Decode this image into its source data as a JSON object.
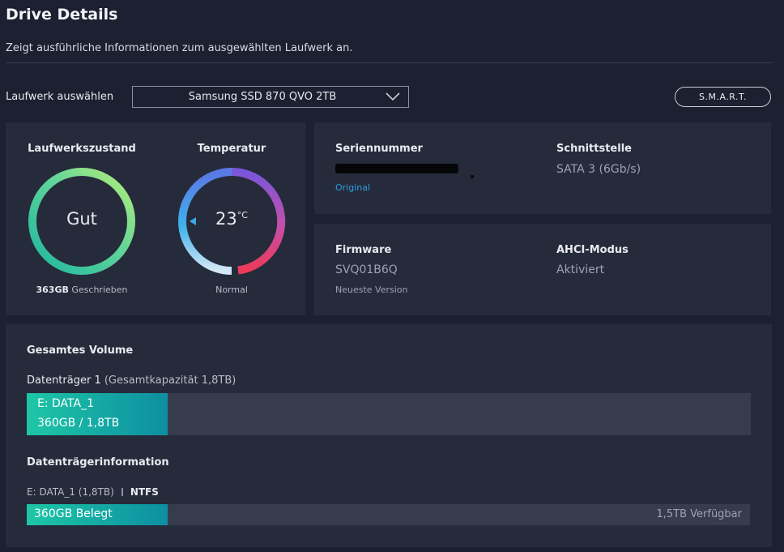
{
  "header": {
    "title": "Drive Details",
    "subtitle": "Zeigt ausführliche Informationen zum ausgewählten Laufwerk an."
  },
  "drive_select": {
    "label": "Laufwerk auswählen",
    "value": "Samsung SSD 870 QVO 2TB",
    "icon": "chevron-down-icon"
  },
  "smart_button": {
    "label": "S.M.A.R.T."
  },
  "status": {
    "health": {
      "title": "Laufwerkszustand",
      "value": "Gut",
      "written_amount": "363GB",
      "written_label": "Geschrieben"
    },
    "temperature": {
      "title": "Temperatur",
      "value": "23",
      "unit": "°C",
      "status": "Normal"
    }
  },
  "serial": {
    "label": "Seriennummer",
    "link": "Original"
  },
  "interface": {
    "label": "Schnittstelle",
    "value": "SATA 3 (6Gb/s)"
  },
  "firmware": {
    "label": "Firmware",
    "value": "SVQ01B6Q",
    "sub": "Neueste Version"
  },
  "ahci": {
    "label": "AHCI-Modus",
    "value": "Aktiviert"
  },
  "volume": {
    "title": "Gesamtes Volume",
    "disk_name": "Datenträger 1",
    "disk_capacity": "(Gesamtkapazität 1,8TB)",
    "partition": {
      "name": "E: DATA_1",
      "size": "360GB / 1,8TB",
      "fraction": 0.195
    }
  },
  "disk_info": {
    "title": "Datenträgerinformation",
    "partition": "E: DATA_1 (1,8TB)",
    "filesystem": "NTFS",
    "used_label": "360GB Belegt",
    "free_label": "1,5TB Verfügbar",
    "used_fraction": 0.195
  },
  "colors": {
    "background": "#1c2030",
    "card": "#262b3b",
    "accent_teal": "#1ec7a6",
    "link_blue": "#2e9be0"
  }
}
